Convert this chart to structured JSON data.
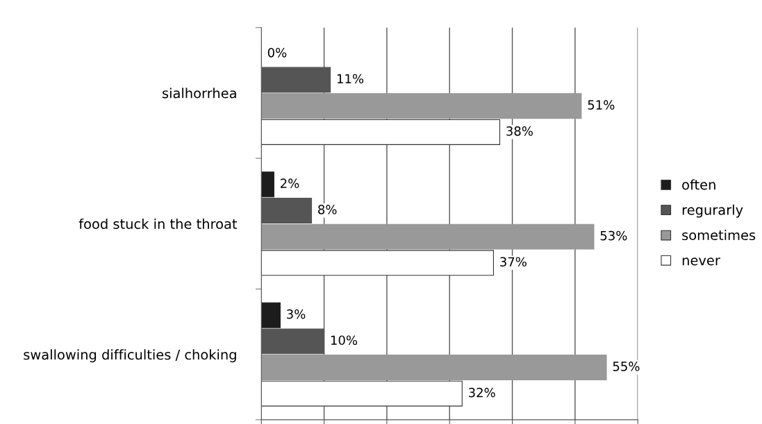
{
  "chart_data": {
    "type": "bar",
    "orientation": "horizontal",
    "categories": [
      "sialhorrhea",
      "food stuck in the throat",
      "swallowing difficulties / choking"
    ],
    "series": [
      {
        "name": "often",
        "color": "#1c1c1c",
        "values": [
          0,
          2,
          3
        ],
        "value_labels": [
          "0%",
          "2%",
          "3%"
        ]
      },
      {
        "name": "regurarly",
        "color": "#555555",
        "values": [
          11,
          8,
          10
        ],
        "value_labels": [
          "11%",
          "8%",
          "10%"
        ]
      },
      {
        "name": "sometimes",
        "color": "#999999",
        "values": [
          51,
          53,
          55
        ],
        "value_labels": [
          "51%",
          "53%",
          "55%"
        ]
      },
      {
        "name": "never",
        "color": "#ffffff",
        "values": [
          38,
          37,
          32
        ],
        "value_labels": [
          "38%",
          "37%",
          "32%"
        ]
      }
    ],
    "xlim": [
      0,
      60
    ],
    "xticks": [
      {
        "value": 0,
        "label": null
      },
      {
        "value": 10,
        "label": null
      },
      {
        "value": 20,
        "label": null
      },
      {
        "value": 30,
        "label": null
      },
      {
        "value": 40,
        "label": null
      },
      {
        "value": 50,
        "label": null
      },
      {
        "value": 60,
        "label": null
      }
    ],
    "tick_labels": "y",
    "grid": "x",
    "legend": "right"
  }
}
